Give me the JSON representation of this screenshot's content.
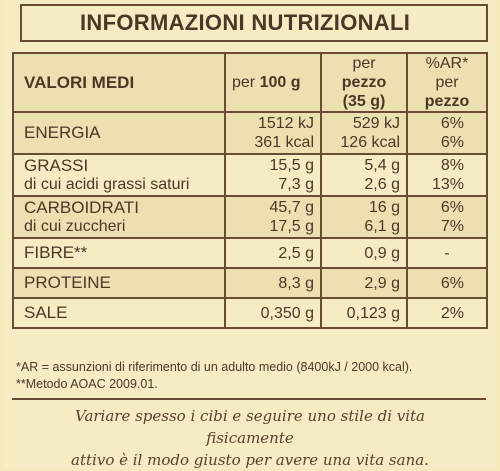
{
  "title": "INFORMAZIONI NUTRIZIONALI",
  "header": {
    "col1": "VALORI MEDI",
    "col2_light": "per ",
    "col2_bold": "100 g",
    "col3_light": "per ",
    "col3_bold": "pezzo",
    "col3_line2": "(35 g)",
    "col4_line1": "%AR*",
    "col4_light": "per ",
    "col4_bold": "pezzo"
  },
  "rows": [
    {
      "label": "ENERGIA",
      "sub": "",
      "v100a": "1512 kJ",
      "v100b": "361 kcal",
      "vpza": "529 kJ",
      "vpzb": "126 kcal",
      "ara": "6%",
      "arb": "6%"
    },
    {
      "label": "GRASSI",
      "sub": "di cui acidi grassi saturi",
      "v100a": "15,5 g",
      "v100b": "7,3 g",
      "vpza": "5,4 g",
      "vpzb": "2,6 g",
      "ara": "8%",
      "arb": "13%"
    },
    {
      "label": "CARBOIDRATI",
      "sub": "di cui zuccheri",
      "v100a": "45,7 g",
      "v100b": "17,5 g",
      "vpza": "16 g",
      "vpzb": "6,1 g",
      "ara": "6%",
      "arb": "7%"
    },
    {
      "label": "FIBRE**",
      "v100": "2,5 g",
      "vpz": "0,9 g",
      "ar": "-"
    },
    {
      "label": "PROTEINE",
      "v100": "8,3 g",
      "vpz": "2,9 g",
      "ar": "6%"
    },
    {
      "label": "SALE",
      "v100": "0,350 g",
      "vpz": "0,123 g",
      "ar": "2%"
    }
  ],
  "footnotes": {
    "line1": "*AR = assunzioni di riferimento di un adulto medio (8400kJ / 2000 kcal).",
    "line2": "**Metodo AOAC 2009.01."
  },
  "slogan": {
    "line1": "Variare spesso i cibi e seguire uno stile di vita fisicamente",
    "line2": "attivo è il modo giusto per avere una vita sana."
  }
}
